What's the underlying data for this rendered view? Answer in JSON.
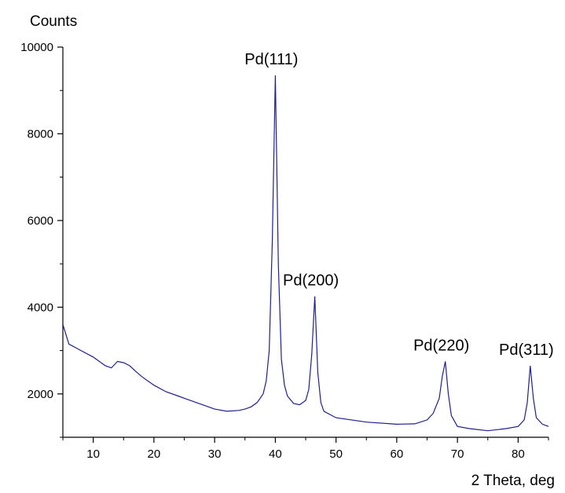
{
  "chart_data": {
    "type": "line",
    "title": "",
    "xlabel": "2 Theta, deg",
    "ylabel": "Counts",
    "xlim": [
      5,
      85
    ],
    "ylim": [
      1000,
      10000
    ],
    "x_ticks": [
      10,
      20,
      30,
      40,
      50,
      60,
      70,
      80
    ],
    "y_ticks": [
      2000,
      4000,
      6000,
      8000,
      10000
    ],
    "grid": false,
    "series_color": "#1f1f8f",
    "series": [
      {
        "x": [
          5,
          6,
          8,
          10,
          12,
          13,
          14,
          15,
          16,
          17,
          18,
          20,
          22,
          24,
          26,
          28,
          30,
          32,
          34,
          35,
          36,
          37,
          38,
          38.5,
          39,
          39.5,
          40,
          40.5,
          41,
          41.5,
          42,
          43,
          44,
          45,
          45.5,
          46,
          46.5,
          47,
          47.5,
          48,
          50,
          55,
          60,
          63,
          65,
          66,
          67,
          67.5,
          68,
          68.5,
          69,
          70,
          72,
          75,
          78,
          80,
          81,
          81.5,
          82,
          82.5,
          83,
          84,
          85
        ],
        "y": [
          3600,
          3150,
          3000,
          2850,
          2650,
          2600,
          2750,
          2720,
          2650,
          2520,
          2400,
          2200,
          2050,
          1950,
          1850,
          1750,
          1650,
          1600,
          1620,
          1650,
          1700,
          1800,
          2000,
          2300,
          3000,
          5500,
          9350,
          5000,
          2800,
          2200,
          1950,
          1780,
          1750,
          1850,
          2100,
          2900,
          4250,
          2500,
          1800,
          1600,
          1450,
          1350,
          1300,
          1310,
          1400,
          1550,
          1900,
          2400,
          2750,
          2000,
          1500,
          1250,
          1200,
          1150,
          1200,
          1250,
          1400,
          1800,
          2650,
          1900,
          1450,
          1300,
          1250
        ]
      }
    ],
    "annotations": [
      {
        "text": "Pd(111)",
        "x": 40
      },
      {
        "text": "Pd(200)",
        "x": 46.5
      },
      {
        "text": "Pd(220)",
        "x": 68
      },
      {
        "text": "Pd(311)",
        "x": 82
      }
    ]
  }
}
